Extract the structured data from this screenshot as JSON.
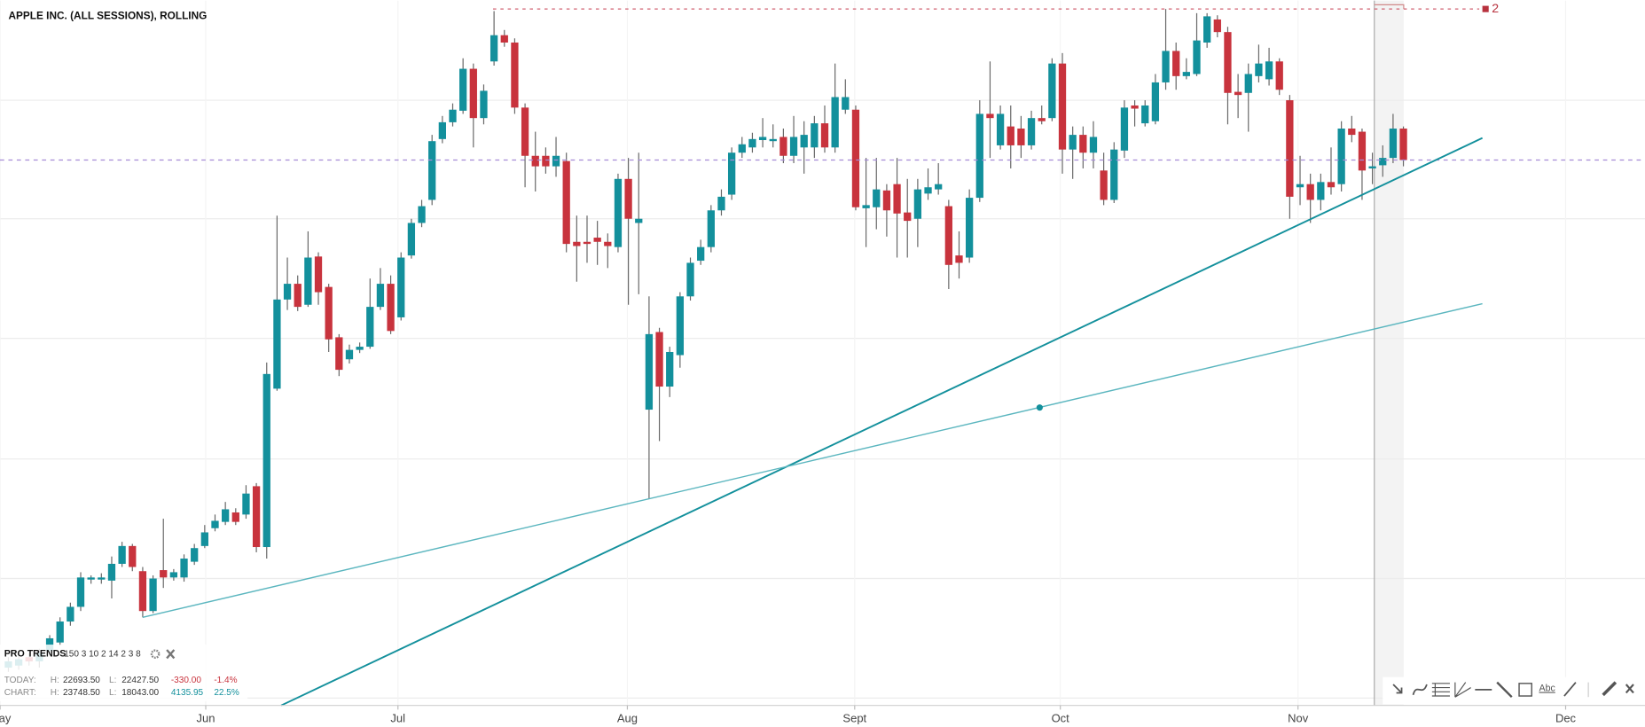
{
  "chart_data": {
    "type": "candlestick",
    "title": "APPLE INC. (ALL SESSIONS), ROLLING",
    "up_color": "#13909c",
    "down_color": "#c8333d",
    "xlim": [
      -0.81,
      158.38
    ],
    "xticks": [
      {
        "value": -0.8,
        "label": "May"
      },
      {
        "value": 19.1,
        "label": "Jun"
      },
      {
        "value": 37.7,
        "label": "Jul"
      },
      {
        "value": 59.9,
        "label": "Aug"
      },
      {
        "value": 81.9,
        "label": "Sept"
      },
      {
        "value": 101.8,
        "label": "Oct"
      },
      {
        "value": 124.8,
        "label": "Nov"
      },
      {
        "value": 150.7,
        "label": "Dec"
      }
    ],
    "ylim": [
      17110,
      23830
    ],
    "ygrid": [
      22880,
      21750,
      20610,
      19460,
      18320,
      17180
    ],
    "x": [
      0,
      1,
      2,
      3,
      4,
      5,
      6,
      7,
      8,
      9,
      10,
      11,
      12,
      13,
      14,
      15,
      16,
      17,
      18,
      19,
      20,
      21,
      22,
      23,
      24,
      25,
      26,
      27,
      28,
      29,
      30,
      31,
      32,
      33,
      34,
      35,
      36,
      37,
      38,
      39,
      40,
      41,
      42,
      43,
      44,
      45,
      46,
      47,
      48,
      49,
      50,
      51,
      52,
      53,
      54,
      55,
      56,
      57,
      58,
      59,
      60,
      61,
      62,
      63,
      64,
      65,
      66,
      67,
      68,
      69,
      70,
      71,
      72,
      73,
      74,
      75,
      76,
      77,
      78,
      79,
      80,
      81,
      82,
      83,
      84,
      85,
      86,
      87,
      88,
      89,
      90,
      91,
      92,
      93,
      94,
      95,
      96,
      97,
      98,
      99,
      100,
      101,
      102,
      103,
      104,
      105,
      106,
      107,
      108,
      109,
      110,
      111,
      112,
      113,
      114,
      115,
      116,
      117,
      118,
      119,
      120,
      121,
      122,
      123,
      124,
      125,
      126,
      127,
      128,
      129,
      130,
      131,
      132,
      133,
      134,
      135
    ],
    "open": [
      17470,
      17490,
      17570,
      17530,
      17630,
      17710,
      17910,
      18050,
      18310,
      18310,
      18300,
      18460,
      18630,
      18390,
      18010,
      18400,
      18330,
      18330,
      18480,
      18630,
      18800,
      18860,
      18950,
      18930,
      19200,
      18620,
      20130,
      20980,
      21130,
      20930,
      21390,
      21100,
      20620,
      20410,
      20500,
      20530,
      20910,
      21130,
      20810,
      21400,
      21710,
      21930,
      22510,
      22670,
      22780,
      23180,
      22710,
      23250,
      23500,
      23430,
      22810,
      22350,
      22350,
      22250,
      22300,
      21530,
      21530,
      21570,
      21530,
      21480,
      22130,
      21710,
      19930,
      20670,
      20150,
      20450,
      21010,
      21350,
      21480,
      21830,
      21980,
      22380,
      22430,
      22500,
      22490,
      22530,
      22350,
      22430,
      22430,
      22660,
      22430,
      22790,
      22790,
      21850,
      21860,
      22020,
      22080,
      21810,
      21750,
      21990,
      22030,
      21870,
      21400,
      21380,
      21950,
      22750,
      22450,
      22630,
      22610,
      22450,
      22710,
      22710,
      23230,
      22410,
      22550,
      22380,
      22210,
      21930,
      22400,
      22830,
      22660,
      22680,
      23050,
      23350,
      23110,
      23130,
      23430,
      23650,
      23530,
      22960,
      22950,
      23110,
      23080,
      23250,
      22880,
      22050,
      22080,
      21930,
      22100,
      22080,
      22610,
      22580,
      22230,
      22260,
      22330,
      22610
    ],
    "high": [
      17570,
      17590,
      17610,
      17650,
      17780,
      17950,
      18090,
      18380,
      18350,
      18370,
      18530,
      18670,
      18650,
      18430,
      18350,
      18890,
      18410,
      18550,
      18650,
      18830,
      18930,
      19050,
      18990,
      19210,
      19230,
      20380,
      21780,
      21380,
      21210,
      21630,
      21430,
      21130,
      20650,
      20550,
      20570,
      21180,
      21280,
      21210,
      21430,
      21750,
      21930,
      22550,
      22730,
      22850,
      23280,
      23230,
      23030,
      23730,
      23550,
      23470,
      22850,
      22580,
      22430,
      22530,
      22380,
      21780,
      21780,
      21730,
      21610,
      22180,
      22330,
      22380,
      21010,
      20710,
      20530,
      21050,
      21380,
      21550,
      21880,
      22030,
      22430,
      22530,
      22570,
      22710,
      22650,
      22610,
      22730,
      22680,
      22730,
      22830,
      23230,
      23080,
      22830,
      22330,
      22330,
      22080,
      22330,
      22130,
      22130,
      22230,
      22280,
      21930,
      21630,
      22030,
      22880,
      23250,
      22830,
      22830,
      22730,
      22780,
      22830,
      23280,
      23330,
      22630,
      22630,
      22680,
      22380,
      22480,
      22880,
      22880,
      22880,
      23130,
      23750,
      23430,
      23280,
      23710,
      23710,
      23690,
      23580,
      23130,
      23230,
      23410,
      23380,
      23280,
      22930,
      22350,
      22180,
      22180,
      22430,
      22680,
      22730,
      22610,
      22380,
      22450,
      22750,
      22630
    ],
    "low": [
      17430,
      17450,
      17490,
      17470,
      17590,
      17680,
      17870,
      18010,
      18270,
      18270,
      18130,
      18430,
      18390,
      17950,
      17990,
      18230,
      18300,
      18290,
      18450,
      18610,
      18770,
      18830,
      18830,
      18890,
      18570,
      18510,
      20110,
      20880,
      20870,
      20910,
      20930,
      20480,
      20250,
      20370,
      20470,
      20510,
      20880,
      20650,
      20780,
      21370,
      21670,
      21880,
      22470,
      22630,
      22750,
      22430,
      22650,
      23210,
      23390,
      22750,
      22050,
      22010,
      22180,
      22150,
      21430,
      21150,
      21330,
      21310,
      21280,
      21430,
      20930,
      21030,
      19080,
      19630,
      20050,
      20330,
      20970,
      21310,
      21430,
      21780,
      21930,
      22330,
      22380,
      22430,
      22430,
      22280,
      22280,
      22180,
      22330,
      22380,
      22380,
      22750,
      21830,
      21480,
      21650,
      21580,
      21380,
      21380,
      21480,
      21930,
      21980,
      21080,
      21180,
      21330,
      21910,
      22330,
      22410,
      22230,
      22330,
      22410,
      22650,
      22680,
      22180,
      22130,
      22230,
      22230,
      21880,
      21900,
      22330,
      22630,
      22630,
      22650,
      22980,
      22980,
      23080,
      23110,
      23380,
      23480,
      22650,
      22710,
      22580,
      23050,
      23020,
      22930,
      21750,
      21880,
      21710,
      21830,
      21980,
      22010,
      22480,
      21930,
      22080,
      22150,
      22280,
      22250
    ],
    "close": [
      17530,
      17550,
      17530,
      17610,
      17750,
      17910,
      18050,
      18330,
      18330,
      18330,
      18460,
      18630,
      18430,
      18010,
      18320,
      18330,
      18380,
      18510,
      18610,
      18760,
      18870,
      18980,
      18860,
      19130,
      18620,
      20270,
      20980,
      21130,
      20910,
      21380,
      21050,
      20600,
      20310,
      20500,
      20530,
      20910,
      21130,
      20680,
      21380,
      21710,
      21870,
      22490,
      22670,
      22790,
      23180,
      22710,
      22970,
      23500,
      23430,
      22810,
      22350,
      22250,
      22250,
      22350,
      21510,
      21490,
      21510,
      21530,
      21490,
      22130,
      21750,
      21750,
      20650,
      20150,
      20480,
      21010,
      21330,
      21480,
      21830,
      21960,
      22380,
      22460,
      22510,
      22530,
      22510,
      22350,
      22530,
      22550,
      22660,
      22430,
      22910,
      22910,
      21860,
      21880,
      22030,
      21830,
      21800,
      21730,
      22030,
      22050,
      22080,
      21310,
      21330,
      21950,
      22750,
      22710,
      22750,
      22450,
      22450,
      22710,
      22680,
      23230,
      22410,
      22550,
      22380,
      22530,
      21930,
      22410,
      22810,
      22800,
      22830,
      23050,
      23350,
      23110,
      23150,
      23450,
      23680,
      23530,
      22950,
      22930,
      23130,
      23230,
      23250,
      22980,
      21960,
      22080,
      21930,
      22100,
      22050,
      22610,
      22550,
      22210,
      22250,
      22330,
      22610,
      22310
    ]
  },
  "marker": "2",
  "panel": {
    "title": "PRO TRENDS",
    "params": "150 3 10 2 14 2 3 8",
    "rows": [
      {
        "label": "TODAY:",
        "h_label": "H:",
        "high": "22693.50",
        "l_label": "L:",
        "low": "22427.50",
        "change": "-330.00",
        "pct": "-1.4%"
      },
      {
        "label": "CHART:",
        "h_label": "H:",
        "high": "23748.50",
        "l_label": "L:",
        "low": "18043.00",
        "change": "4135.95",
        "pct": "22.5%"
      }
    ]
  },
  "toolbar": {
    "text_tool": "Abc"
  }
}
